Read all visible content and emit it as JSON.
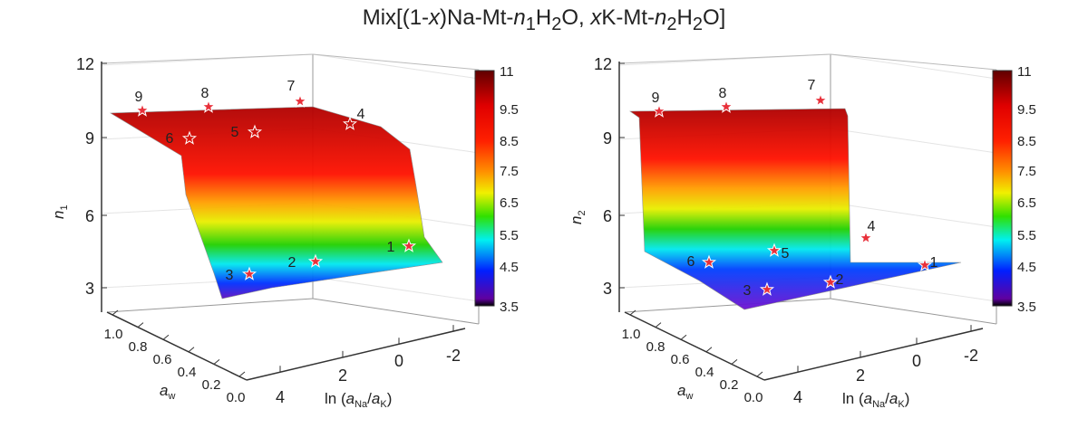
{
  "title_html": "Mix[(1-<i>x</i>)Na-Mt-<i>n</i><sub>1</sub>H<sub>2</sub>O, <i>x</i>K-Mt-<i>n</i><sub>2</sub>H<sub>2</sub>O]",
  "title": "Mix[(1-x)Na-Mt-n1H2O, xK-Mt-n2H2O]",
  "chart_data": [
    {
      "type": "surface",
      "zlabel": "n1",
      "xlabel": "ln (aNa/aK)",
      "ylabel": "aw",
      "zticks": [
        "12",
        "9",
        "6",
        "3"
      ],
      "xticks": [
        "4",
        "2",
        "0",
        "-2"
      ],
      "yticks": [
        "1.0",
        "0.8",
        "0.6",
        "0.4",
        "0.2",
        "0.0"
      ],
      "zlim": [
        2,
        12
      ],
      "colorbar": {
        "ticks": [
          "11",
          "9.5",
          "8.5",
          "7.5",
          "6.5",
          "5.5",
          "4.5",
          "3.5"
        ],
        "range": [
          3.5,
          11
        ]
      },
      "points": [
        "9",
        "8",
        "7",
        "4",
        "5",
        "6",
        "3",
        "2",
        "1"
      ],
      "description": "high plateau ~10 at high aw, step down to ~4 at low aw"
    },
    {
      "type": "surface",
      "zlabel": "n2",
      "xlabel": "ln (aNa/aK)",
      "ylabel": "aw",
      "zticks": [
        "12",
        "9",
        "6",
        "3"
      ],
      "xticks": [
        "4",
        "2",
        "0",
        "-2"
      ],
      "yticks": [
        "1.0",
        "0.8",
        "0.6",
        "0.4",
        "0.2",
        "0.0"
      ],
      "zlim": [
        2,
        12
      ],
      "colorbar": {
        "ticks": [
          "11",
          "9.5",
          "8.5",
          "7.5",
          "6.5",
          "5.5",
          "4.5",
          "3.5"
        ],
        "range": [
          3.5,
          11
        ]
      },
      "points": [
        "9",
        "8",
        "7",
        "4",
        "5",
        "6",
        "3",
        "2",
        "1"
      ],
      "description": "plateau ~10 only at highest aw, ~4 elsewhere"
    }
  ]
}
